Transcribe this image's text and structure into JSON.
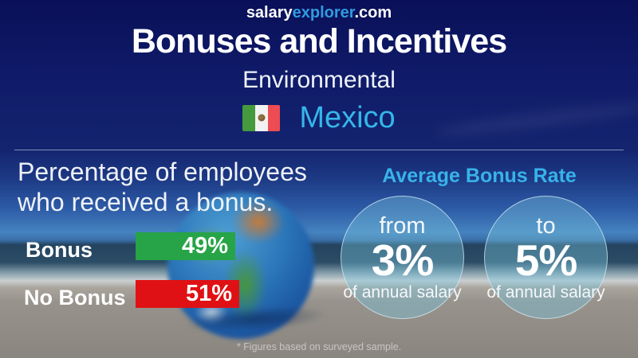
{
  "header": {
    "site_salary": "salary",
    "site_explorer": "explorer",
    "site_com": ".com",
    "title": "Bonuses and Incentives",
    "category": "Environmental",
    "country": "Mexico",
    "flag": "mexico-flag"
  },
  "left_panel": {
    "heading_line1": "Percentage of employees",
    "heading_line2": "who received a bonus.",
    "rows": [
      {
        "label": "Bonus",
        "value_label": "49%"
      },
      {
        "label": "No Bonus",
        "value_label": "51%"
      }
    ]
  },
  "right_panel": {
    "title": "Average Bonus Rate",
    "from": {
      "label": "from",
      "value": "3%",
      "caption": "of annual salary"
    },
    "to": {
      "label": "to",
      "value": "5%",
      "caption": "of annual salary"
    }
  },
  "footer": {
    "note": "* Figures based on surveyed sample."
  },
  "colors": {
    "background_navy": "#14246f",
    "accent_blue": "#35b6ea",
    "bar_green": "#26a447",
    "bar_red": "#e01114"
  },
  "chart_data": {
    "type": "bar",
    "title": "Percentage of employees who received a bonus.",
    "categories": [
      "Bonus",
      "No Bonus"
    ],
    "values": [
      49,
      51
    ],
    "unit": "%",
    "colors": [
      "#26a447",
      "#e01114"
    ],
    "orientation": "horizontal",
    "xlim": [
      0,
      100
    ],
    "grid": false,
    "annotations": [
      "Average Bonus Rate: from 3% to 5% of annual salary"
    ]
  }
}
